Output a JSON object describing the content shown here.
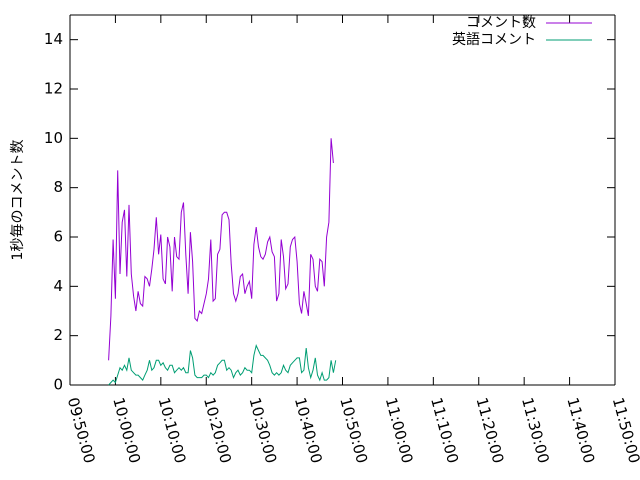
{
  "chart_data": {
    "type": "line",
    "title": "",
    "xlabel": "",
    "ylabel": "1秒毎のコメント数",
    "xlim": [
      "09:50:00",
      "11:50:00"
    ],
    "ylim": [
      0,
      15
    ],
    "y_ticks": [
      0,
      2,
      4,
      6,
      8,
      10,
      12,
      14
    ],
    "x_ticks": [
      "09:50:00",
      "10:00:00",
      "10:10:00",
      "10:20:00",
      "10:30:00",
      "10:40:00",
      "10:50:00",
      "11:00:00",
      "11:10:00",
      "11:20:00",
      "11:30:00",
      "11:40:00",
      "11:50:00"
    ],
    "grid": false,
    "legend_position": "top-right",
    "colors": {
      "コメント数": "#9400d3",
      "英語コメント": "#009e73"
    },
    "series": [
      {
        "name": "コメント数",
        "points": [
          [
            "09:58:30",
            1.0
          ],
          [
            "09:59:00",
            2.8
          ],
          [
            "09:59:30",
            5.9
          ],
          [
            "10:00:00",
            3.5
          ],
          [
            "10:00:30",
            8.7
          ],
          [
            "10:01:00",
            4.5
          ],
          [
            "10:01:30",
            6.6
          ],
          [
            "10:02:00",
            7.1
          ],
          [
            "10:02:30",
            4.4
          ],
          [
            "10:03:00",
            7.3
          ],
          [
            "10:03:30",
            4.5
          ],
          [
            "10:04:00",
            3.6
          ],
          [
            "10:04:30",
            3.0
          ],
          [
            "10:05:00",
            3.8
          ],
          [
            "10:05:30",
            3.3
          ],
          [
            "10:06:00",
            3.2
          ],
          [
            "10:06:30",
            4.4
          ],
          [
            "10:07:00",
            4.3
          ],
          [
            "10:07:30",
            4.0
          ],
          [
            "10:08:00",
            4.7
          ],
          [
            "10:08:30",
            5.5
          ],
          [
            "10:09:00",
            6.8
          ],
          [
            "10:09:30",
            5.3
          ],
          [
            "10:10:00",
            6.1
          ],
          [
            "10:10:30",
            4.3
          ],
          [
            "10:11:00",
            4.1
          ],
          [
            "10:11:30",
            6.0
          ],
          [
            "10:12:00",
            5.6
          ],
          [
            "10:12:30",
            3.8
          ],
          [
            "10:13:00",
            6.0
          ],
          [
            "10:13:30",
            5.2
          ],
          [
            "10:14:00",
            5.1
          ],
          [
            "10:14:30",
            7.0
          ],
          [
            "10:15:00",
            7.4
          ],
          [
            "10:15:30",
            5.3
          ],
          [
            "10:16:00",
            3.7
          ],
          [
            "10:16:30",
            6.2
          ],
          [
            "10:17:00",
            5.0
          ],
          [
            "10:17:30",
            2.7
          ],
          [
            "10:18:00",
            2.6
          ],
          [
            "10:18:30",
            3.0
          ],
          [
            "10:19:00",
            2.9
          ],
          [
            "10:19:30",
            3.3
          ],
          [
            "10:20:00",
            3.7
          ],
          [
            "10:20:30",
            4.3
          ],
          [
            "10:21:00",
            5.9
          ],
          [
            "10:21:30",
            3.4
          ],
          [
            "10:22:00",
            3.5
          ],
          [
            "10:22:30",
            5.3
          ],
          [
            "10:23:00",
            5.5
          ],
          [
            "10:23:30",
            6.9
          ],
          [
            "10:24:00",
            7.0
          ],
          [
            "10:24:30",
            7.0
          ],
          [
            "10:25:00",
            6.7
          ],
          [
            "10:25:30",
            4.9
          ],
          [
            "10:26:00",
            3.7
          ],
          [
            "10:26:30",
            3.4
          ],
          [
            "10:27:00",
            3.7
          ],
          [
            "10:27:30",
            4.4
          ],
          [
            "10:28:00",
            4.5
          ],
          [
            "10:28:30",
            3.7
          ],
          [
            "10:29:00",
            4.0
          ],
          [
            "10:29:30",
            4.2
          ],
          [
            "10:30:00",
            3.5
          ],
          [
            "10:30:30",
            5.7
          ],
          [
            "10:31:00",
            6.4
          ],
          [
            "10:31:30",
            5.6
          ],
          [
            "10:32:00",
            5.2
          ],
          [
            "10:32:30",
            5.1
          ],
          [
            "10:33:00",
            5.3
          ],
          [
            "10:33:30",
            5.8
          ],
          [
            "10:34:00",
            6.0
          ],
          [
            "10:34:30",
            5.4
          ],
          [
            "10:35:00",
            5.2
          ],
          [
            "10:35:30",
            3.4
          ],
          [
            "10:36:00",
            3.7
          ],
          [
            "10:36:30",
            5.9
          ],
          [
            "10:37:00",
            5.2
          ],
          [
            "10:37:30",
            3.9
          ],
          [
            "10:38:00",
            4.1
          ],
          [
            "10:38:30",
            5.6
          ],
          [
            "10:39:00",
            5.9
          ],
          [
            "10:39:30",
            6.0
          ],
          [
            "10:40:00",
            5.0
          ],
          [
            "10:40:30",
            3.3
          ],
          [
            "10:41:00",
            2.9
          ],
          [
            "10:41:30",
            3.8
          ],
          [
            "10:42:00",
            3.3
          ],
          [
            "10:42:30",
            2.8
          ],
          [
            "10:43:00",
            5.3
          ],
          [
            "10:43:30",
            5.1
          ],
          [
            "10:44:00",
            4.0
          ],
          [
            "10:44:30",
            3.8
          ],
          [
            "10:45:00",
            5.1
          ],
          [
            "10:45:30",
            5.0
          ],
          [
            "10:46:00",
            4.0
          ],
          [
            "10:46:30",
            6.0
          ],
          [
            "10:47:00",
            6.6
          ],
          [
            "10:47:30",
            10.0
          ],
          [
            "10:48:00",
            9.0
          ]
        ]
      },
      {
        "name": "英語コメント",
        "points": [
          [
            "09:58:30",
            0.0
          ],
          [
            "09:59:00",
            0.1
          ],
          [
            "09:59:30",
            0.2
          ],
          [
            "10:00:00",
            0.1
          ],
          [
            "10:00:30",
            0.4
          ],
          [
            "10:01:00",
            0.7
          ],
          [
            "10:01:30",
            0.6
          ],
          [
            "10:02:00",
            0.8
          ],
          [
            "10:02:30",
            0.6
          ],
          [
            "10:03:00",
            1.1
          ],
          [
            "10:03:30",
            0.6
          ],
          [
            "10:04:00",
            0.5
          ],
          [
            "10:04:30",
            0.4
          ],
          [
            "10:05:00",
            0.4
          ],
          [
            "10:05:30",
            0.3
          ],
          [
            "10:06:00",
            0.2
          ],
          [
            "10:06:30",
            0.4
          ],
          [
            "10:07:00",
            0.6
          ],
          [
            "10:07:30",
            1.0
          ],
          [
            "10:08:00",
            0.6
          ],
          [
            "10:08:30",
            0.7
          ],
          [
            "10:09:00",
            1.0
          ],
          [
            "10:09:30",
            1.0
          ],
          [
            "10:10:00",
            0.8
          ],
          [
            "10:10:30",
            0.9
          ],
          [
            "10:11:00",
            0.7
          ],
          [
            "10:11:30",
            0.6
          ],
          [
            "10:12:00",
            0.8
          ],
          [
            "10:12:30",
            0.8
          ],
          [
            "10:13:00",
            0.5
          ],
          [
            "10:13:30",
            0.6
          ],
          [
            "10:14:00",
            0.7
          ],
          [
            "10:14:30",
            0.6
          ],
          [
            "10:15:00",
            0.7
          ],
          [
            "10:15:30",
            0.5
          ],
          [
            "10:16:00",
            0.5
          ],
          [
            "10:16:30",
            1.4
          ],
          [
            "10:17:00",
            1.1
          ],
          [
            "10:17:30",
            0.4
          ],
          [
            "10:18:00",
            0.3
          ],
          [
            "10:18:30",
            0.3
          ],
          [
            "10:19:00",
            0.3
          ],
          [
            "10:19:30",
            0.4
          ],
          [
            "10:20:00",
            0.4
          ],
          [
            "10:20:30",
            0.3
          ],
          [
            "10:21:00",
            0.5
          ],
          [
            "10:21:30",
            0.4
          ],
          [
            "10:22:00",
            0.5
          ],
          [
            "10:22:30",
            0.8
          ],
          [
            "10:23:00",
            0.9
          ],
          [
            "10:23:30",
            1.0
          ],
          [
            "10:24:00",
            1.0
          ],
          [
            "10:24:30",
            0.6
          ],
          [
            "10:25:00",
            0.7
          ],
          [
            "10:25:30",
            0.6
          ],
          [
            "10:26:00",
            0.3
          ],
          [
            "10:26:30",
            0.5
          ],
          [
            "10:27:00",
            0.6
          ],
          [
            "10:27:30",
            0.4
          ],
          [
            "10:28:00",
            0.5
          ],
          [
            "10:28:30",
            0.7
          ],
          [
            "10:29:00",
            0.6
          ],
          [
            "10:29:30",
            0.6
          ],
          [
            "10:30:00",
            0.5
          ],
          [
            "10:30:30",
            1.2
          ],
          [
            "10:31:00",
            1.6
          ],
          [
            "10:31:30",
            1.4
          ],
          [
            "10:32:00",
            1.2
          ],
          [
            "10:32:30",
            1.2
          ],
          [
            "10:33:00",
            1.1
          ],
          [
            "10:33:30",
            1.0
          ],
          [
            "10:34:00",
            0.8
          ],
          [
            "10:34:30",
            0.5
          ],
          [
            "10:35:00",
            0.4
          ],
          [
            "10:35:30",
            0.5
          ],
          [
            "10:36:00",
            0.4
          ],
          [
            "10:36:30",
            0.5
          ],
          [
            "10:37:00",
            0.8
          ],
          [
            "10:37:30",
            0.6
          ],
          [
            "10:38:00",
            0.5
          ],
          [
            "10:38:30",
            0.8
          ],
          [
            "10:39:00",
            0.9
          ],
          [
            "10:39:30",
            1.0
          ],
          [
            "10:40:00",
            1.1
          ],
          [
            "10:40:30",
            1.1
          ],
          [
            "10:41:00",
            0.5
          ],
          [
            "10:41:30",
            0.6
          ],
          [
            "10:42:00",
            1.5
          ],
          [
            "10:42:30",
            0.7
          ],
          [
            "10:43:00",
            0.3
          ],
          [
            "10:43:30",
            0.6
          ],
          [
            "10:44:00",
            1.1
          ],
          [
            "10:44:30",
            0.4
          ],
          [
            "10:45:00",
            0.2
          ],
          [
            "10:45:30",
            0.5
          ],
          [
            "10:46:00",
            0.2
          ],
          [
            "10:46:30",
            0.2
          ],
          [
            "10:47:00",
            0.3
          ],
          [
            "10:47:30",
            1.0
          ],
          [
            "10:48:00",
            0.5
          ],
          [
            "10:48:30",
            1.0
          ]
        ]
      }
    ]
  }
}
